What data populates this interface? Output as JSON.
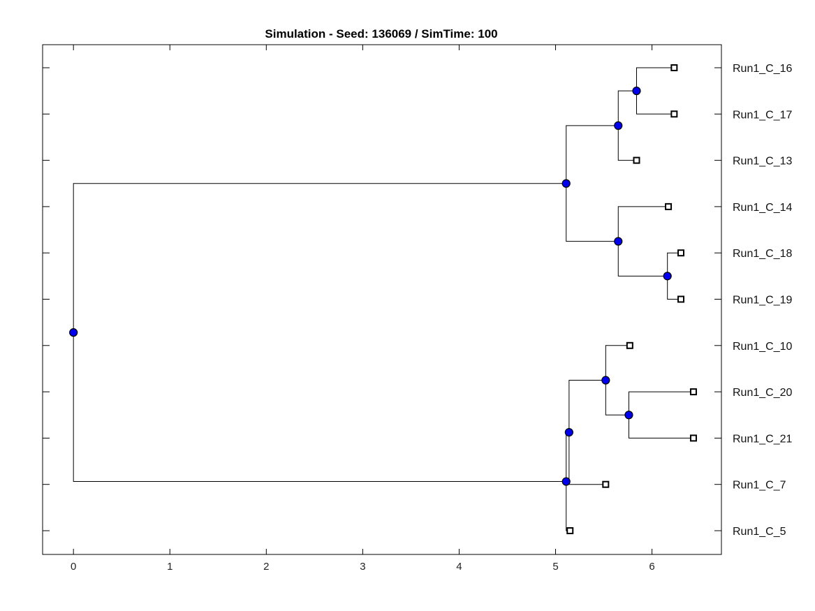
{
  "chart_data": {
    "type": "dendrogram",
    "title": "Simulation - Seed: 136069 / SimTime: 100",
    "xlabel": "",
    "ylabel": "",
    "xlim": [
      -0.32,
      6.72
    ],
    "x_ticks": [
      0,
      1,
      2,
      3,
      4,
      5,
      6
    ],
    "grid": false,
    "leaves": [
      "Run1_C_16",
      "Run1_C_17",
      "Run1_C_13",
      "Run1_C_14",
      "Run1_C_18",
      "Run1_C_19",
      "Run1_C_10",
      "Run1_C_20",
      "Run1_C_21",
      "Run1_C_7",
      "Run1_C_5"
    ],
    "leaf_ages": {
      "Run1_C_16": 6.23,
      "Run1_C_17": 6.23,
      "Run1_C_13": 5.84,
      "Run1_C_14": 6.17,
      "Run1_C_18": 6.3,
      "Run1_C_19": 6.3,
      "Run1_C_10": 5.77,
      "Run1_C_20": 6.43,
      "Run1_C_21": 6.43,
      "Run1_C_7": 5.52,
      "Run1_C_5": 5.15
    },
    "tree": {
      "name": "root",
      "x": 0.0,
      "children": [
        {
          "name": "n1",
          "x": 5.11,
          "children": [
            {
              "name": "n2",
              "x": 5.65,
              "children": [
                {
                  "name": "n3",
                  "x": 5.84,
                  "children": [
                    {
                      "leaf": "Run1_C_16"
                    },
                    {
                      "leaf": "Run1_C_17"
                    }
                  ]
                },
                {
                  "leaf": "Run1_C_13"
                }
              ]
            },
            {
              "name": "n4",
              "x": 5.65,
              "children": [
                {
                  "leaf": "Run1_C_14"
                },
                {
                  "name": "n5",
                  "x": 6.16,
                  "children": [
                    {
                      "leaf": "Run1_C_18"
                    },
                    {
                      "leaf": "Run1_C_19"
                    }
                  ]
                }
              ]
            }
          ]
        },
        {
          "name": "n6",
          "x": 5.11,
          "children": [
            {
              "name": "n7",
              "x": 5.14,
              "children": [
                {
                  "name": "n8",
                  "x": 5.52,
                  "children": [
                    {
                      "leaf": "Run1_C_10"
                    },
                    {
                      "name": "n9",
                      "x": 5.76,
                      "children": [
                        {
                          "leaf": "Run1_C_20"
                        },
                        {
                          "leaf": "Run1_C_21"
                        }
                      ]
                    }
                  ]
                },
                {
                  "leaf": "Run1_C_7"
                }
              ]
            },
            {
              "leaf": "Run1_C_5"
            }
          ]
        }
      ]
    },
    "colors": {
      "internal_node": "#0000ee",
      "leaf_node": "#ffffff",
      "line": "#000000"
    }
  }
}
